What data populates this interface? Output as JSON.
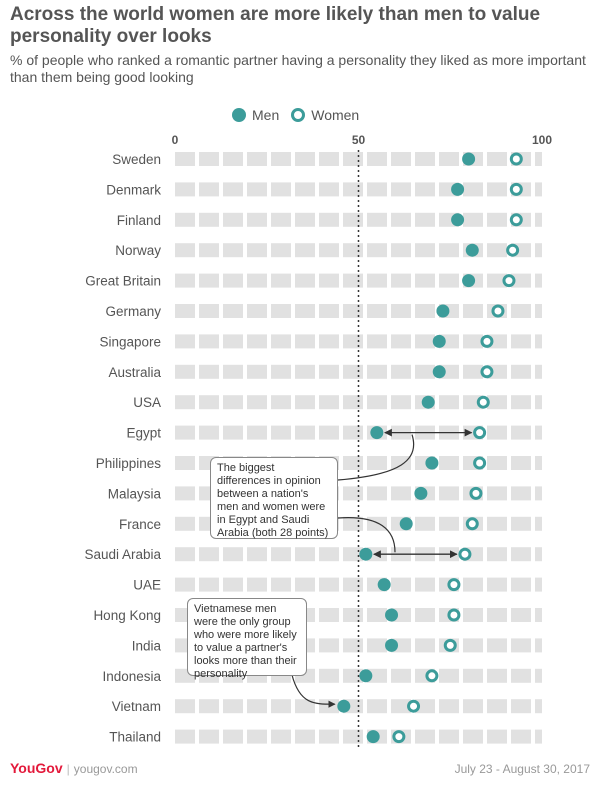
{
  "title": "Across the world women are more likely than men to value personality over looks",
  "subtitle": "% of people who ranked a romantic partner having a personality they liked as more important than them being good looking",
  "legend": {
    "men": "Men",
    "women": "Women"
  },
  "colors": {
    "accent": "#3c9c9a",
    "band": "#e1e1e1",
    "brand": "#e3193b"
  },
  "chart_data": {
    "type": "scatter",
    "title": "Across the world women are more likely than men to value personality over looks",
    "xlim": [
      0,
      100
    ],
    "x_ticks": [
      "0",
      "50",
      "100"
    ],
    "reference_line": 50,
    "grid": false,
    "legend_position": "top",
    "categories": [
      "Sweden",
      "Denmark",
      "Finland",
      "Norway",
      "Great Britain",
      "Germany",
      "Singapore",
      "Australia",
      "USA",
      "Egypt",
      "Philippines",
      "Malaysia",
      "France",
      "Saudi Arabia",
      "UAE",
      "Hong Kong",
      "India",
      "Indonesia",
      "Vietnam",
      "Thailand"
    ],
    "series": [
      {
        "name": "Men",
        "values": [
          80,
          77,
          77,
          81,
          80,
          73,
          72,
          72,
          69,
          55,
          70,
          67,
          63,
          52,
          57,
          59,
          59,
          52,
          46,
          54
        ]
      },
      {
        "name": "Women",
        "values": [
          93,
          93,
          93,
          92,
          91,
          88,
          85,
          85,
          84,
          83,
          83,
          82,
          81,
          79,
          76,
          76,
          75,
          70,
          65,
          61
        ]
      }
    ]
  },
  "annotations": [
    "The biggest differences in opinion between a nation's men and women were in Egypt and Saudi Arabia (both 28 points)",
    "Vietnamese men were the only group who were more likely to value a partner's looks more than their personality"
  ],
  "footer": {
    "brand": "YouGov",
    "site": "yougov.com",
    "date": "July 23 - August 30, 2017"
  }
}
